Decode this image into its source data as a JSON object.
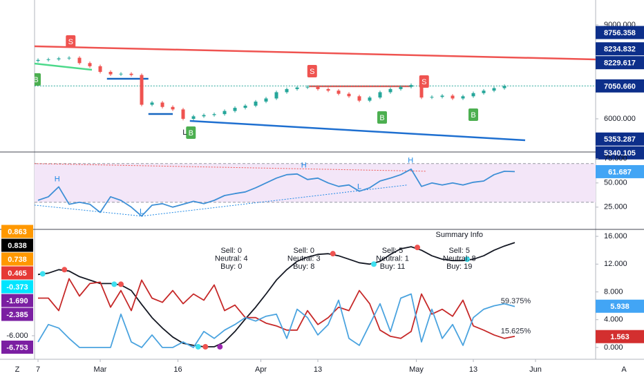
{
  "chart_data": [
    {
      "type": "candlestick",
      "x": [
        0,
        2,
        4,
        6,
        8,
        10,
        12,
        14,
        16,
        18,
        20,
        22,
        24,
        26,
        28,
        30,
        32,
        34,
        36,
        38,
        40,
        42,
        44,
        46,
        48,
        50,
        52,
        54,
        56,
        58,
        60,
        62,
        64,
        66,
        68,
        70,
        72,
        74,
        76,
        78,
        80,
        82,
        84,
        86,
        88,
        90
      ],
      "open": [
        7850,
        7880,
        7900,
        7930,
        7950,
        7780,
        7680,
        7500,
        7420,
        7440,
        7400,
        6450,
        6520,
        6380,
        6300,
        6000,
        6080,
        6120,
        6150,
        6250,
        6350,
        6420,
        6550,
        6650,
        6850,
        6950,
        7000,
        7020,
        6950,
        6900,
        6800,
        6720,
        6580,
        6680,
        6850,
        6950,
        7020,
        7080,
        6680,
        6700,
        6740,
        6650,
        6720,
        6820,
        6900,
        6980
      ],
      "high": [
        7930,
        7950,
        7980,
        8000,
        8000,
        7830,
        7730,
        7550,
        7490,
        7490,
        7450,
        6570,
        6570,
        6430,
        6350,
        6130,
        6170,
        6200,
        6300,
        6400,
        6470,
        6600,
        6700,
        6900,
        7000,
        7050,
        7070,
        7070,
        7000,
        6950,
        6850,
        6770,
        6730,
        6900,
        7000,
        7070,
        7130,
        7130,
        6750,
        6790,
        6790,
        6770,
        6870,
        6950,
        7030,
        7100
      ],
      "low": [
        7800,
        7830,
        7850,
        7880,
        7730,
        7630,
        7450,
        7370,
        7370,
        7350,
        6400,
        6400,
        6330,
        6250,
        5950,
        5950,
        6030,
        6070,
        6100,
        6200,
        6300,
        6370,
        6500,
        6600,
        6800,
        6900,
        6950,
        6900,
        6850,
        6750,
        6670,
        6530,
        6530,
        6630,
        6800,
        6900,
        6970,
        6630,
        6630,
        6650,
        6600,
        6600,
        6670,
        6770,
        6850,
        6930
      ],
      "close": [
        7880,
        7900,
        7930,
        7950,
        7780,
        7680,
        7500,
        7420,
        7440,
        7400,
        6450,
        6520,
        6380,
        6300,
        6000,
        6080,
        6120,
        6150,
        6250,
        6350,
        6420,
        6550,
        6650,
        6850,
        6950,
        7000,
        7020,
        6950,
        6900,
        6800,
        6720,
        6580,
        6680,
        6850,
        6950,
        7020,
        7080,
        6680,
        6700,
        6740,
        6650,
        6720,
        6820,
        6900,
        6980,
        7050
      ],
      "up_color": "#26a69a",
      "down_color": "#ef5350",
      "ylim": [
        4940,
        9795
      ],
      "yticks": [
        {
          "value": 9000,
          "label": "9000.000"
        },
        {
          "value": 6000,
          "label": "6000.000"
        }
      ],
      "lines": [
        {
          "color": "#ef5350",
          "x": [
            -0.7,
            107.6
          ],
          "y": [
            8316,
            7897
          ]
        },
        {
          "color": "#ef5350",
          "x": [
            52.3,
            72
          ],
          "y": [
            7040,
            7040
          ]
        },
        {
          "color": "#4cd98a",
          "x": [
            -0.7,
            10.4
          ],
          "y": [
            7765,
            7566
          ]
        },
        {
          "color": "#1565c0",
          "x": [
            13.3,
            21.3
          ],
          "y": [
            7280,
            7280
          ]
        },
        {
          "color": "#1565c0",
          "x": [
            21.3,
            26
          ],
          "y": [
            6155,
            6155
          ]
        },
        {
          "color": "#1e6fd0",
          "x": [
            29.3,
            94
          ],
          "y": [
            5933,
            5316
          ]
        },
        {
          "color": "#26a69a",
          "dash": true,
          "x": [
            -0.7,
            107.6
          ],
          "y": [
            7050.66,
            7050.66
          ]
        }
      ],
      "signals": [
        {
          "text": "S",
          "x": 6.3,
          "y": 8470,
          "color": "#ef5350"
        },
        {
          "text": "S",
          "x": 52.9,
          "y": 7522,
          "color": "#ef5350"
        },
        {
          "text": "S",
          "x": 74.5,
          "y": 7191,
          "color": "#ef5350"
        },
        {
          "text": "B",
          "x": -0.4,
          "y": 7257,
          "color": "#4caf50"
        },
        {
          "text": "B",
          "x": 29.5,
          "y": 5559,
          "color": "#4caf50"
        },
        {
          "text": "B",
          "x": 66.4,
          "y": 6044,
          "color": "#4caf50"
        },
        {
          "text": "B",
          "x": 84,
          "y": 6132,
          "color": "#4caf50"
        }
      ],
      "notes": [
        {
          "text": "L",
          "x": 28.3,
          "y": 5559,
          "color": "#131722"
        }
      ],
      "marker_color": "#0d2f8a",
      "markers": [
        {
          "value": 8756.358,
          "label": "8756.358"
        },
        {
          "value": 8234.832,
          "label": "8234.832"
        },
        {
          "value": 8229.617,
          "label": "8229.617"
        },
        {
          "value": 7050.66,
          "label": "7050.660"
        },
        {
          "value": 5353.287,
          "label": "5353.287"
        },
        {
          "value": 5340.105,
          "label": "5340.105"
        }
      ]
    },
    {
      "type": "line",
      "x": [
        0,
        2,
        4,
        6,
        8,
        10,
        12,
        14,
        16,
        18,
        20,
        22,
        24,
        26,
        28,
        30,
        32,
        34,
        36,
        38,
        40,
        42,
        44,
        46,
        48,
        50,
        52,
        54,
        56,
        58,
        60,
        62,
        64,
        66,
        68,
        70,
        72,
        74,
        76,
        78,
        80,
        82,
        84,
        86,
        88,
        90,
        92
      ],
      "series": [
        {
          "color": "#3d8fd6",
          "values": [
            32.1,
            35.7,
            46,
            28,
            30,
            28,
            19.6,
            35.7,
            32,
            25,
            15.7,
            27,
            28.6,
            25,
            28,
            31,
            28.6,
            32,
            37,
            39,
            40.7,
            45,
            50,
            55,
            58.6,
            59.3,
            53.6,
            55,
            50,
            46.4,
            47.9,
            41.4,
            45,
            52,
            55,
            58.6,
            64.3,
            46.4,
            50,
            47.9,
            50,
            47.9,
            50.7,
            52,
            58.6,
            62.1,
            61.687
          ]
        }
      ],
      "ylim": [
        2,
        82
      ],
      "yticks": [
        {
          "value": 75,
          "label": "75.000"
        },
        {
          "value": 50,
          "label": "50.000"
        },
        {
          "value": 25,
          "label": "25.000"
        }
      ],
      "band": [
        30,
        70
      ],
      "band_color": "#f3e6f8",
      "lines": [
        {
          "color": "#ef5350",
          "dash": true,
          "x": [
            -0.7,
            75
          ],
          "y": [
            70,
            62.1
          ]
        },
        {
          "color": "#1e88e5",
          "dash": true,
          "x": [
            -0.7,
            20
          ],
          "y": [
            27.1,
            15.7
          ]
        },
        {
          "color": "#1e88e5",
          "dash": true,
          "x": [
            20,
            71.3
          ],
          "y": [
            15.7,
            47.9
          ]
        }
      ],
      "notes": [
        {
          "text": "H",
          "x": 3.7,
          "y": 53.6,
          "color": "#1e88e5"
        },
        {
          "text": "H",
          "x": 51.3,
          "y": 67.9,
          "color": "#1e88e5"
        },
        {
          "text": "H",
          "x": 71.9,
          "y": 72.9,
          "color": "#1e88e5"
        },
        {
          "text": "L",
          "x": 20,
          "y": 20,
          "color": "#1e88e5"
        },
        {
          "text": "L",
          "x": 62,
          "y": 45.7,
          "color": "#1e88e5"
        }
      ],
      "marker_color": "#42a5f5",
      "markers": [
        {
          "value": 61.687,
          "label": "61.687"
        }
      ]
    },
    {
      "type": "line",
      "x": [
        0,
        2,
        4,
        6,
        8,
        10,
        12,
        14,
        16,
        18,
        20,
        22,
        24,
        26,
        28,
        30,
        32,
        34,
        36,
        38,
        40,
        42,
        44,
        46,
        48,
        50,
        52,
        54,
        56,
        58,
        60,
        62,
        64,
        66,
        68,
        70,
        72,
        74,
        76,
        78,
        80,
        82,
        84,
        86,
        88,
        90,
        92
      ],
      "series": [
        {
          "color": "#131722",
          "values": [
            10.5,
            10.7,
            11.2,
            11,
            10.2,
            9.7,
            9.2,
            9.2,
            9,
            8.2,
            6.2,
            4.3,
            2.8,
            1.5,
            0.6,
            0.3,
            0.1,
            0.1,
            0.8,
            2.3,
            4.1,
            5.8,
            7.7,
            9.7,
            11.2,
            12.4,
            13,
            13.4,
            13.5,
            13.2,
            12.7,
            12.2,
            12,
            12.4,
            13.4,
            14.2,
            14.5,
            14,
            13.2,
            12.7,
            12.5,
            12.5,
            12.7,
            13.2,
            14,
            14.6,
            15.1
          ]
        },
        {
          "color": "#c62828",
          "values": [
            7.1,
            7.1,
            5.3,
            9.9,
            7.4,
            9.2,
            9.4,
            5.8,
            8.2,
            5.3,
            9.7,
            7.1,
            6.5,
            8.2,
            6.3,
            7.7,
            6.8,
            9,
            5.3,
            6.1,
            4.3,
            4.3,
            3.5,
            3.1,
            2.5,
            2.5,
            5.3,
            3.3,
            4.3,
            5.8,
            5.3,
            8.2,
            6.3,
            2.5,
            1.6,
            1.3,
            2.3,
            7.7,
            4.8,
            5.5,
            4.5,
            6.8,
            3.1,
            2.5,
            1.8,
            1.3,
            1.6
          ]
        },
        {
          "color": "#4aa3df",
          "values": [
            0.8,
            3.3,
            2.8,
            1.3,
            0,
            0,
            0,
            0,
            4.8,
            0.8,
            0,
            1.8,
            0,
            0,
            0.8,
            0,
            2.3,
            1.3,
            2.5,
            3.3,
            4.3,
            3.8,
            4.5,
            4.8,
            1.3,
            5.5,
            4.3,
            1.8,
            3.3,
            6.8,
            1.3,
            0.3,
            3.3,
            6.3,
            2.3,
            7.1,
            7.7,
            0.8,
            5.5,
            1.3,
            3.3,
            0.3,
            4.3,
            5.5,
            6,
            6.3,
            5.9
          ]
        }
      ],
      "ylim": [
        -1.7,
        17
      ],
      "yticks": [
        {
          "value": 16,
          "label": "16.000"
        },
        {
          "value": 12,
          "label": "12.000"
        },
        {
          "value": 8,
          "label": "8.000"
        },
        {
          "value": 4,
          "label": "4.000"
        },
        {
          "value": 0,
          "label": "0.000"
        }
      ],
      "y2lim": [
        -7.55,
        1.0
      ],
      "y2ticks": [
        {
          "value": -6,
          "label": "-6.000"
        }
      ],
      "left_markers": [
        {
          "value": 0.863,
          "label": "0.863",
          "color": "#ff9800"
        },
        {
          "value": 0.838,
          "label": "0.838",
          "color": "#000000"
        },
        {
          "value": 0.738,
          "label": "0.738",
          "color": "#ff9800"
        },
        {
          "value": 0.465,
          "label": "0.465",
          "color": "#e53935"
        },
        {
          "value": -0.373,
          "label": "-0.373",
          "color": "#00e5ff"
        },
        {
          "value": -1.69,
          "label": "-1.690",
          "color": "#7b1fa2"
        },
        {
          "value": -2.385,
          "label": "-2.385",
          "color": "#7b1fa2"
        },
        {
          "value": -6.753,
          "label": "-6.753",
          "color": "#7b1fa2"
        }
      ],
      "markers": [
        {
          "value": 5.938,
          "label": "5.938",
          "color": "#42a5f5"
        },
        {
          "value": 1.563,
          "label": "1.563",
          "color": "#d32f2f"
        }
      ],
      "dots": [
        {
          "x": 0.9,
          "y": 10.6,
          "color": "#3ee0f0"
        },
        {
          "x": 14.7,
          "y": 9.1,
          "color": "#3ee0f0"
        },
        {
          "x": 30.9,
          "y": 0.1,
          "color": "#3ee0f0"
        },
        {
          "x": 64.8,
          "y": 12,
          "color": "#3ee0f0"
        },
        {
          "x": 82.8,
          "y": 12.7,
          "color": "#3ee0f0"
        },
        {
          "x": 5.1,
          "y": 11.2,
          "color": "#ef5350"
        },
        {
          "x": 16,
          "y": 9.1,
          "color": "#ef5350"
        },
        {
          "x": 32.3,
          "y": 0.1,
          "color": "#ef5350"
        },
        {
          "x": 56.9,
          "y": 13.5,
          "color": "#ef5350"
        },
        {
          "x": 73.2,
          "y": 14.4,
          "color": "#ef5350"
        },
        {
          "x": 35.1,
          "y": 0.1,
          "color": "#9c27b0"
        }
      ],
      "notes": [
        {
          "text": "59.375%",
          "x": 89.3,
          "y": 6.65,
          "color": "#2a2e39"
        },
        {
          "text": "15.625%",
          "x": 89.3,
          "y": 2.3,
          "color": "#2a2e39"
        }
      ],
      "summary_title": {
        "text": "Summary Info",
        "x": 81.3,
        "y": 16.2
      },
      "summary": [
        {
          "x": 37.3,
          "y": 13.9,
          "lines": [
            "Sell: 0",
            "Neutral: 4",
            "Buy: 0"
          ]
        },
        {
          "x": 51.3,
          "y": 13.9,
          "lines": [
            "Sell: 0",
            "Neutral: 3",
            "Buy: 8"
          ]
        },
        {
          "x": 68.4,
          "y": 13.9,
          "lines": [
            "Sell: 5",
            "Neutral: 1",
            "Buy: 11"
          ]
        },
        {
          "x": 81.3,
          "y": 13.9,
          "lines": [
            "Sell: 5",
            "Neutral: 8",
            "Buy: 19"
          ]
        }
      ],
      "xlim": [
        -0.67,
        107.6
      ],
      "xticks": [
        {
          "value": 0,
          "label": "7"
        },
        {
          "value": 12,
          "label": "Mar"
        },
        {
          "value": 27,
          "label": "16"
        },
        {
          "value": 43,
          "label": "Apr"
        },
        {
          "value": 54,
          "label": "13"
        },
        {
          "value": 73,
          "label": "May"
        },
        {
          "value": 84,
          "label": "13"
        },
        {
          "value": 96,
          "label": "Jun"
        }
      ]
    }
  ],
  "footer": {
    "left": "Z",
    "right": "A"
  }
}
